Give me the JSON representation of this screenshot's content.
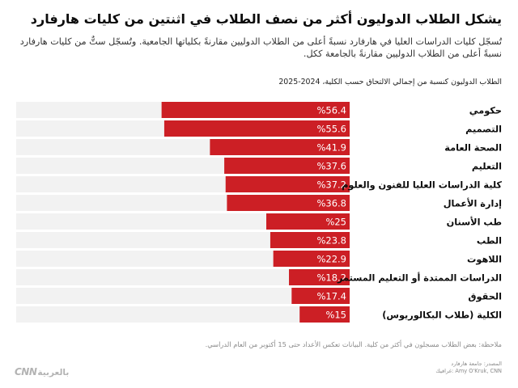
{
  "header": {
    "title": "يشكل الطلاب الدوليون أكثر من نصف الطلاب في اثنتين من كليات هارفارد",
    "subtitle": "تُسجّل كليات الدراسات العليا في هارفارد نسبةً أعلى من الطلاب الدوليين مقارنةً بكلياتها الجامعية. وتُسجّل ستٌّ من كليات هارفارد نسبةً أعلى من الطلاب الدوليين مقارنةً بالجامعة ككل."
  },
  "footer": {
    "note": "ملاحظة: بعض الطلاب مسجلون في أكثر من كلية. البيانات تعكس الأعداد حتى 15 أكتوبر من العام الدراسي.",
    "source": "المصدر: جامعة هارفارد",
    "credit": "غرافيك: Amy O'Kruk, CNN",
    "logo_text": "CNN",
    "logo_arabic": "بالعربية"
  },
  "colors": {
    "bar": "#cc1f25",
    "track": "#f2f2f2",
    "value_text": "#ffffff"
  },
  "chart_data": {
    "type": "bar",
    "orientation": "horizontal",
    "label": "الطلاب الدوليون كنسبة من إجمالي الالتحاق حسب الكلية، 2024-2025",
    "categories": [
      "حكومي",
      "التصميم",
      "الصحة العامة",
      "التعليم",
      "كلية الدراسات العليا للفنون والعلوم",
      "إدارة الأعمال",
      "طب الأسنان",
      "الطب",
      "اللاهوت",
      "الدراسات الممتدة أو التعليم المستمر",
      "الحقوق",
      "الكلية (طلاب البكالوريوس)"
    ],
    "values": [
      56.4,
      55.6,
      41.9,
      37.6,
      37.2,
      36.8,
      25,
      23.8,
      22.9,
      18.2,
      17.4,
      15
    ],
    "value_labels": [
      "%56.4",
      "%55.6",
      "%41.9",
      "%37.6",
      "%37.2",
      "%36.8",
      "%25",
      "%23.8",
      "%22.9",
      "%18.2",
      "%17.4",
      "%15"
    ],
    "xlim": [
      0,
      100
    ],
    "grid": false
  }
}
